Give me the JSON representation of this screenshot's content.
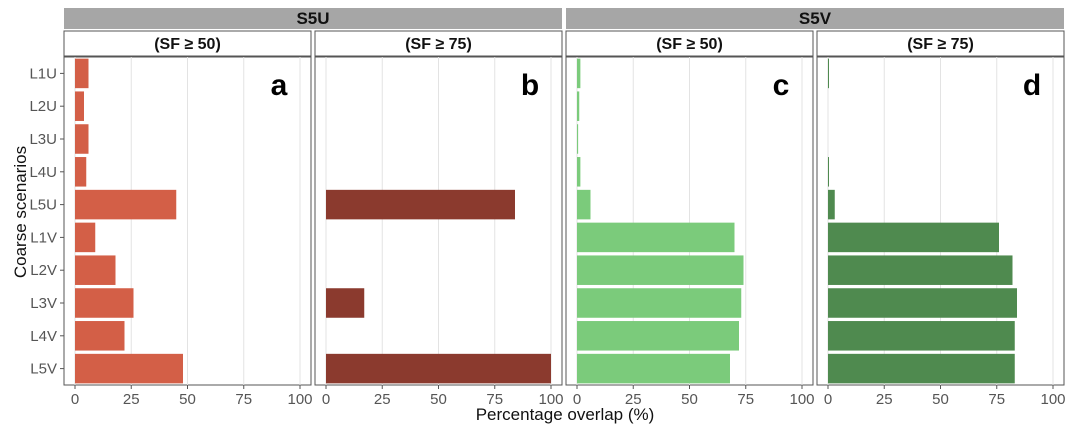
{
  "chart_data": {
    "type": "bar",
    "orientation": "horizontal",
    "xlabel": "Percentage overlap (%)",
    "ylabel": "Coarse scenarios",
    "xlim": [
      0,
      100
    ],
    "x_ticks": [
      "0",
      "25",
      "50",
      "75",
      "100"
    ],
    "categories": [
      "L1U",
      "L2U",
      "L3U",
      "L4U",
      "L5U",
      "L1V",
      "L2V",
      "L3V",
      "L4V",
      "L5V"
    ],
    "groups": [
      {
        "label": "S5U"
      },
      {
        "label": "S5V"
      }
    ],
    "panels": [
      {
        "group": "S5U",
        "subtitle": "(SF ≥ 50)",
        "letter": "a",
        "color": "#d35f47",
        "values": [
          6,
          4,
          6,
          5,
          45,
          9,
          18,
          26,
          22,
          48
        ]
      },
      {
        "group": "S5U",
        "subtitle": "(SF ≥ 75)",
        "letter": "b",
        "color": "#8b3a2e",
        "values": [
          0,
          0,
          0,
          0,
          84,
          0,
          0,
          17,
          0,
          100
        ]
      },
      {
        "group": "S5V",
        "subtitle": "(SF ≥ 50)",
        "letter": "c",
        "color": "#7bcb7b",
        "values": [
          1.5,
          1,
          0.5,
          1.5,
          6,
          70,
          74,
          73,
          72,
          68
        ]
      },
      {
        "group": "S5V",
        "subtitle": "(SF ≥ 75)",
        "letter": "d",
        "color": "#4f8a4f",
        "values": [
          0.3,
          0,
          0,
          0.3,
          3,
          76,
          82,
          84,
          83,
          83
        ]
      }
    ],
    "grid": true,
    "legend": "none"
  }
}
